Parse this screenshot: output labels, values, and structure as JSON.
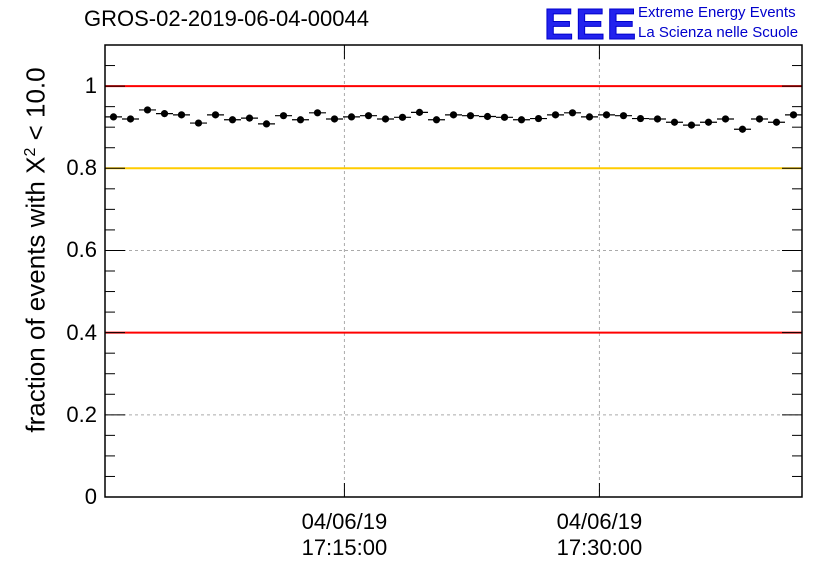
{
  "title": "GROS-02-2019-06-04-00044",
  "logo": {
    "mark": "EEE",
    "line1": "Extreme Energy Events",
    "line2": "La Scienza nelle Scuole"
  },
  "chart_data": {
    "type": "scatter",
    "title": "GROS-02-2019-06-04-00044",
    "ylabel_prefix": "fraction of events with X",
    "ylabel_sup": "2",
    "ylabel_suffix": " < 10.0",
    "xlabel": "",
    "ylim": [
      0,
      1.1
    ],
    "yticks": [
      {
        "value": 0,
        "label": "0"
      },
      {
        "value": 0.2,
        "label": "0.2"
      },
      {
        "value": 0.4,
        "label": "0.4"
      },
      {
        "value": 0.6,
        "label": "0.6"
      },
      {
        "value": 0.8,
        "label": "0.8"
      },
      {
        "value": 1.0,
        "label": "1"
      }
    ],
    "xlim": [
      "17:00:55",
      "17:41:55"
    ],
    "xticks": [
      {
        "value": "17:15:00",
        "date": "04/06/19",
        "time": "17:15:00"
      },
      {
        "value": "17:30:00",
        "date": "04/06/19",
        "time": "17:30:00"
      }
    ],
    "grid": true,
    "reference_lines": [
      {
        "y": 1.0,
        "color": "#ff0000"
      },
      {
        "y": 0.8,
        "color": "#ffcc00"
      },
      {
        "y": 0.4,
        "color": "#ff0000"
      }
    ],
    "series": [
      {
        "color": "#000000",
        "x": [
          "17:01:25",
          "17:02:25",
          "17:03:25",
          "17:04:25",
          "17:05:25",
          "17:06:25",
          "17:07:25",
          "17:08:25",
          "17:09:25",
          "17:10:25",
          "17:11:25",
          "17:12:25",
          "17:13:25",
          "17:14:25",
          "17:15:25",
          "17:16:25",
          "17:17:25",
          "17:18:25",
          "17:19:25",
          "17:20:25",
          "17:21:25",
          "17:22:25",
          "17:23:25",
          "17:24:25",
          "17:25:25",
          "17:26:25",
          "17:27:25",
          "17:28:25",
          "17:29:25",
          "17:30:25",
          "17:31:25",
          "17:32:25",
          "17:33:25",
          "17:34:25",
          "17:35:25",
          "17:36:25",
          "17:37:25",
          "17:38:25",
          "17:39:25",
          "17:40:25",
          "17:41:25"
        ],
        "y": [
          0.925,
          0.92,
          0.942,
          0.933,
          0.93,
          0.91,
          0.93,
          0.918,
          0.922,
          0.908,
          0.928,
          0.918,
          0.935,
          0.92,
          0.925,
          0.928,
          0.92,
          0.924,
          0.936,
          0.918,
          0.93,
          0.928,
          0.926,
          0.924,
          0.918,
          0.921,
          0.93,
          0.935,
          0.925,
          0.93,
          0.928,
          0.921,
          0.92,
          0.912,
          0.905,
          0.912,
          0.92,
          0.895,
          0.92,
          0.912,
          0.93
        ]
      }
    ]
  }
}
